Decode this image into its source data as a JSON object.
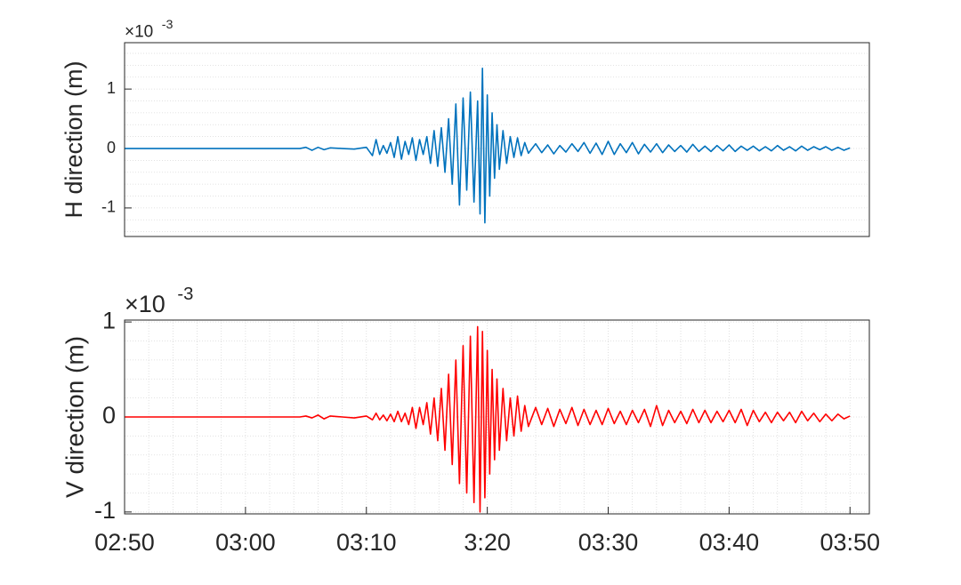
{
  "chart_data": [
    {
      "type": "line",
      "ylabel": "H direction (m)",
      "exponent": {
        "base": "×10",
        "power": "-3"
      },
      "color": "#0072bd",
      "xlim": [
        170,
        231.6
      ],
      "ylim": [
        -1.48,
        1.78
      ],
      "yticks": [
        -1,
        0,
        1
      ],
      "minor_grid": "y",
      "x": [
        170,
        184.5,
        185,
        185.5,
        186,
        186.5,
        187,
        188,
        189,
        190,
        190.5,
        190.8,
        191.1,
        191.4,
        191.7,
        192,
        192.3,
        192.6,
        192.9,
        193.2,
        193.5,
        193.8,
        194.1,
        194.4,
        194.7,
        195,
        195.3,
        195.6,
        195.9,
        196.2,
        196.5,
        196.8,
        197.1,
        197.4,
        197.7,
        198,
        198.3,
        198.6,
        198.9,
        199.2,
        199.4,
        199.6,
        199.8,
        200,
        200.2,
        200.4,
        200.6,
        200.8,
        201,
        201.3,
        201.6,
        201.9,
        202.2,
        202.5,
        202.8,
        203.1,
        203.4,
        204,
        204.5,
        205,
        205.5,
        206,
        206.5,
        207,
        207.5,
        208,
        208.5,
        209,
        209.5,
        210,
        210.5,
        211,
        211.5,
        212,
        212.5,
        213,
        213.5,
        214,
        214.5,
        215,
        215.5,
        216,
        216.5,
        217,
        217.5,
        218,
        218.5,
        219,
        219.5,
        220,
        220.5,
        221,
        221.5,
        222,
        222.5,
        223,
        223.5,
        224,
        224.5,
        225,
        225.5,
        226,
        226.5,
        227,
        227.5,
        228,
        228.5,
        229,
        229.5,
        230
      ],
      "values": [
        0,
        0,
        0.02,
        -0.03,
        0.02,
        -0.02,
        0.01,
        0,
        -0.01,
        0.02,
        -0.12,
        0.15,
        -0.1,
        0.05,
        -0.08,
        0.1,
        -0.15,
        0.2,
        -0.18,
        0.12,
        -0.1,
        0.18,
        -0.2,
        0.15,
        -0.1,
        0.2,
        -0.25,
        0.3,
        -0.3,
        0.35,
        -0.4,
        0.5,
        -0.6,
        0.75,
        -0.95,
        0.85,
        -0.7,
        0.95,
        -0.9,
        0.8,
        -1.1,
        1.35,
        -1.25,
        0.9,
        -0.8,
        0.6,
        -0.5,
        0.4,
        -0.35,
        0.3,
        -0.25,
        0.2,
        -0.15,
        0.18,
        -0.12,
        0.1,
        -0.08,
        0.08,
        -0.07,
        0.06,
        -0.09,
        0.05,
        -0.06,
        0.08,
        -0.05,
        0.1,
        -0.08,
        0.09,
        -0.1,
        0.12,
        -0.1,
        0.08,
        -0.07,
        0.1,
        -0.09,
        0.07,
        -0.06,
        0.08,
        -0.07,
        0.06,
        -0.05,
        0.05,
        -0.06,
        0.07,
        -0.05,
        0.04,
        -0.05,
        0.05,
        -0.04,
        0.06,
        -0.05,
        0.04,
        -0.03,
        0.04,
        -0.04,
        0.03,
        -0.04,
        0.05,
        -0.03,
        0.03,
        -0.04,
        0.04,
        -0.03,
        0.03,
        -0.02,
        0.03,
        -0.03,
        0.02,
        -0.03,
        0.01
      ]
    },
    {
      "type": "line",
      "ylabel": "V direction (m)",
      "exponent": {
        "base": "×10",
        "power": "-3"
      },
      "color": "#ff0000",
      "xlim": [
        170,
        231.6
      ],
      "ylim": [
        -1.02,
        1.02
      ],
      "yticks": [
        -1,
        0,
        1
      ],
      "minor_grid": "both",
      "xticks": [
        {
          "value": 170,
          "label": "02:50"
        },
        {
          "value": 180,
          "label": "03:00"
        },
        {
          "value": 190,
          "label": "03:10"
        },
        {
          "value": 200,
          "label": "3:20"
        },
        {
          "value": 210,
          "label": "03:30"
        },
        {
          "value": 220,
          "label": "03:40"
        },
        {
          "value": 230,
          "label": "03:50"
        }
      ],
      "x": [
        170,
        184.5,
        185,
        185.5,
        186,
        186.5,
        187,
        188,
        189,
        190,
        190.5,
        190.8,
        191.1,
        191.4,
        191.7,
        192,
        192.3,
        192.6,
        192.9,
        193.2,
        193.5,
        193.8,
        194.1,
        194.4,
        194.7,
        195,
        195.3,
        195.6,
        195.9,
        196.2,
        196.5,
        196.8,
        197.1,
        197.4,
        197.7,
        198,
        198.3,
        198.6,
        198.9,
        199.2,
        199.4,
        199.6,
        199.8,
        200,
        200.2,
        200.4,
        200.6,
        200.8,
        201,
        201.3,
        201.6,
        201.9,
        202.2,
        202.5,
        202.8,
        203.1,
        203.4,
        204,
        204.5,
        205,
        205.5,
        206,
        206.5,
        207,
        207.5,
        208,
        208.5,
        209,
        209.5,
        210,
        210.5,
        211,
        211.5,
        212,
        212.5,
        213,
        213.5,
        214,
        214.5,
        215,
        215.5,
        216,
        216.5,
        217,
        217.5,
        218,
        218.5,
        219,
        219.5,
        220,
        220.5,
        221,
        221.5,
        222,
        222.5,
        223,
        223.5,
        224,
        224.5,
        225,
        225.5,
        226,
        226.5,
        227,
        227.5,
        228,
        228.5,
        229,
        229.5,
        230
      ],
      "values": [
        0,
        0,
        0.01,
        -0.01,
        0.02,
        -0.02,
        0.01,
        0,
        -0.01,
        0.01,
        -0.03,
        0.04,
        -0.03,
        0.02,
        -0.04,
        0.03,
        -0.05,
        0.06,
        -0.05,
        0.04,
        -0.08,
        0.1,
        -0.12,
        0.1,
        -0.08,
        0.15,
        -0.18,
        0.2,
        -0.25,
        0.3,
        -0.35,
        0.45,
        -0.5,
        0.6,
        -0.7,
        0.75,
        -0.8,
        0.85,
        -0.9,
        0.95,
        -1.0,
        0.9,
        -0.85,
        0.7,
        -0.6,
        0.5,
        -0.45,
        0.4,
        -0.35,
        0.3,
        -0.25,
        0.2,
        -0.2,
        0.22,
        -0.15,
        0.12,
        -0.1,
        0.1,
        -0.08,
        0.09,
        -0.1,
        0.08,
        -0.07,
        0.1,
        -0.09,
        0.08,
        -0.08,
        0.07,
        -0.08,
        0.09,
        -0.07,
        0.06,
        -0.08,
        0.07,
        -0.06,
        0.08,
        -0.1,
        0.12,
        -0.09,
        0.07,
        -0.06,
        0.06,
        -0.07,
        0.08,
        -0.06,
        0.07,
        -0.06,
        0.06,
        -0.05,
        0.07,
        -0.06,
        0.08,
        -0.09,
        0.07,
        -0.05,
        0.05,
        -0.06,
        0.05,
        -0.04,
        0.05,
        -0.06,
        0.06,
        -0.04,
        0.04,
        -0.05,
        0.03,
        -0.04,
        0.03,
        -0.02,
        0.01
      ]
    }
  ]
}
